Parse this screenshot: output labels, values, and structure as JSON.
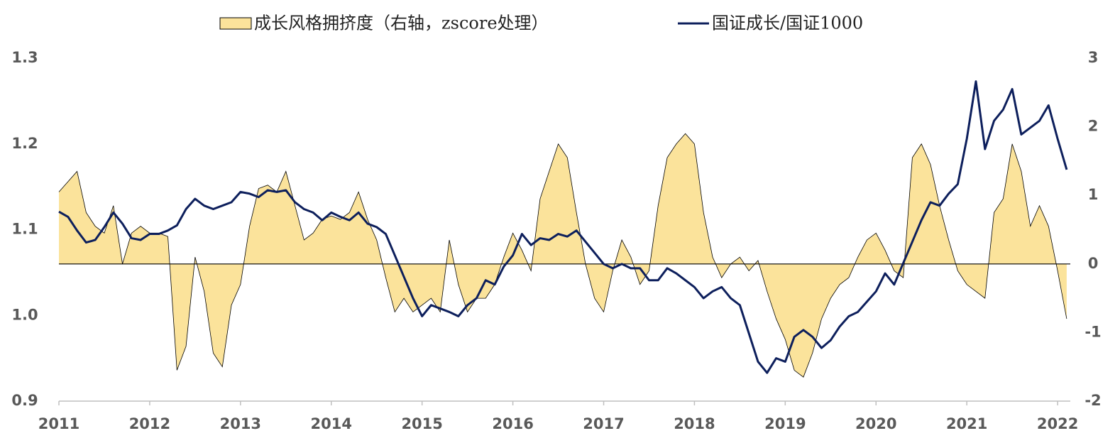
{
  "chart_data": {
    "type": "area_line",
    "x": [
      2011.0,
      2011.1,
      2011.2,
      2011.3,
      2011.4,
      2011.5,
      2011.6,
      2011.7,
      2011.8,
      2011.9,
      2012.0,
      2012.1,
      2012.2,
      2012.3,
      2012.4,
      2012.5,
      2012.6,
      2012.7,
      2012.8,
      2012.9,
      2013.0,
      2013.1,
      2013.2,
      2013.3,
      2013.4,
      2013.5,
      2013.6,
      2013.7,
      2013.8,
      2013.9,
      2014.0,
      2014.1,
      2014.2,
      2014.3,
      2014.4,
      2014.5,
      2014.6,
      2014.7,
      2014.8,
      2014.9,
      2015.0,
      2015.1,
      2015.2,
      2015.3,
      2015.4,
      2015.5,
      2015.6,
      2015.7,
      2015.8,
      2015.9,
      2016.0,
      2016.1,
      2016.2,
      2016.3,
      2016.4,
      2016.5,
      2016.6,
      2016.7,
      2016.8,
      2016.9,
      2017.0,
      2017.1,
      2017.2,
      2017.3,
      2017.4,
      2017.5,
      2017.6,
      2017.7,
      2017.8,
      2017.9,
      2018.0,
      2018.1,
      2018.2,
      2018.3,
      2018.4,
      2018.5,
      2018.6,
      2018.7,
      2018.8,
      2018.9,
      2019.0,
      2019.1,
      2019.2,
      2019.3,
      2019.4,
      2019.5,
      2019.6,
      2019.7,
      2019.8,
      2019.9,
      2020.0,
      2020.1,
      2020.2,
      2020.3,
      2020.4,
      2020.5,
      2020.6,
      2020.7,
      2020.8,
      2020.9,
      2021.0,
      2021.1,
      2021.2,
      2021.3,
      2021.4,
      2021.5,
      2021.6,
      2021.7,
      2021.8,
      2021.9,
      2022.0,
      2022.1
    ],
    "series": [
      {
        "name": "成长风格拥挤度（右轴，zscore处理）",
        "kind": "area",
        "axis": "y2",
        "color": "#fbe39b",
        "values": [
          1.05,
          1.2,
          1.35,
          0.75,
          0.55,
          0.45,
          0.85,
          0,
          0.45,
          0.55,
          0.45,
          0.45,
          0.4,
          -1.55,
          -1.2,
          0.1,
          -0.4,
          -1.3,
          -1.5,
          -0.6,
          -0.3,
          0.55,
          1.1,
          1.15,
          1.05,
          1.35,
          0.85,
          0.35,
          0.45,
          0.65,
          0.7,
          0.65,
          0.75,
          1.05,
          0.65,
          0.35,
          -0.2,
          -0.7,
          -0.5,
          -0.7,
          -0.6,
          -0.5,
          -0.7,
          0.35,
          -0.3,
          -0.7,
          -0.5,
          -0.5,
          -0.3,
          0.1,
          0.45,
          0.2,
          -0.1,
          0.95,
          1.35,
          1.75,
          1.55,
          0.75,
          0,
          -0.5,
          -0.7,
          -0.1,
          0.35,
          0.1,
          -0.3,
          -0.1,
          0.85,
          1.55,
          1.75,
          1.9,
          1.75,
          0.75,
          0.1,
          -0.2,
          0,
          0.1,
          -0.1,
          0.05,
          -0.4,
          -0.8,
          -1.1,
          -1.55,
          -1.65,
          -1.3,
          -0.8,
          -0.5,
          -0.3,
          -0.2,
          0.1,
          0.35,
          0.45,
          0.2,
          -0.1,
          -0.2,
          1.55,
          1.75,
          1.45,
          0.85,
          0.35,
          -0.1,
          -0.3,
          -0.4,
          -0.5,
          0.75,
          0.95,
          1.75,
          1.35,
          0.55,
          0.85,
          0.55,
          -0.1,
          -0.8
        ]
      },
      {
        "name": "国证成长/国证1000",
        "kind": "line",
        "axis": "y",
        "color": "#0d1f5c",
        "values": [
          1.121,
          1.115,
          1.099,
          1.085,
          1.088,
          1.103,
          1.12,
          1.107,
          1.09,
          1.088,
          1.095,
          1.095,
          1.099,
          1.105,
          1.124,
          1.136,
          1.128,
          1.124,
          1.128,
          1.132,
          1.144,
          1.142,
          1.138,
          1.146,
          1.144,
          1.146,
          1.132,
          1.124,
          1.12,
          1.111,
          1.12,
          1.115,
          1.111,
          1.12,
          1.107,
          1.103,
          1.095,
          1.07,
          1.045,
          1.02,
          0.999,
          1.012,
          1.008,
          1.004,
          0.999,
          1.012,
          1.02,
          1.041,
          1.036,
          1.057,
          1.07,
          1.095,
          1.082,
          1.09,
          1.088,
          1.095,
          1.092,
          1.099,
          1.086,
          1.073,
          1.06,
          1.055,
          1.06,
          1.055,
          1.055,
          1.041,
          1.041,
          1.055,
          1.049,
          1.041,
          1.033,
          1.02,
          1.028,
          1.033,
          1.02,
          1.012,
          0.979,
          0.946,
          0.933,
          0.95,
          0.946,
          0.975,
          0.983,
          0.975,
          0.962,
          0.971,
          0.987,
          0.999,
          1.004,
          1.016,
          1.028,
          1.049,
          1.036,
          1.061,
          1.086,
          1.111,
          1.132,
          1.128,
          1.142,
          1.153,
          1.206,
          1.273,
          1.194,
          1.227,
          1.24,
          1.264,
          1.211,
          1.219,
          1.227,
          1.245,
          1.206,
          1.17
        ]
      }
    ],
    "xlim": [
      2011,
      2022.14
    ],
    "xticks": [
      2011,
      2012,
      2013,
      2014,
      2015,
      2016,
      2017,
      2018,
      2019,
      2020,
      2021,
      2022
    ],
    "ylim": [
      0.9,
      1.3
    ],
    "yticks": [
      0.9,
      {
        "value": 1,
        "label": "1.0"
      },
      1.1,
      1.2,
      1.3
    ],
    "y2lim": [
      -2,
      3
    ],
    "y2ticks": [
      -2,
      -1,
      0,
      1,
      2,
      3
    ]
  }
}
